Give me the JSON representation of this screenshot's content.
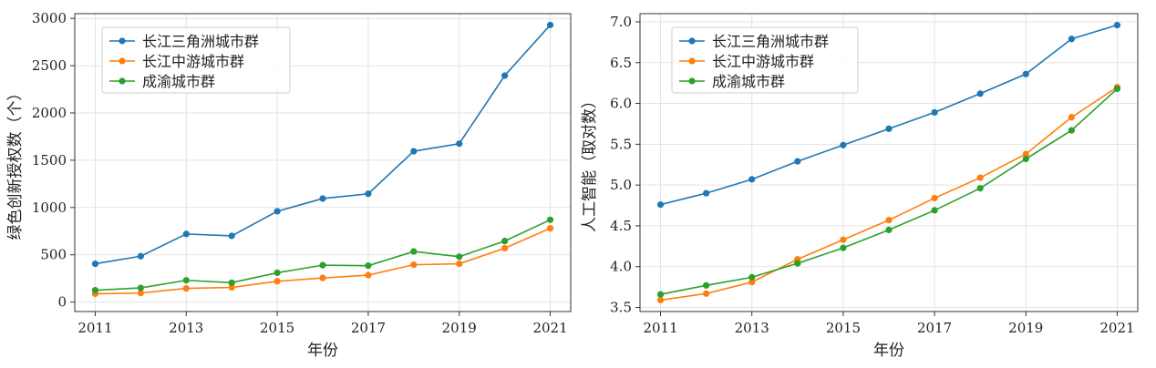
{
  "chart_data": [
    {
      "type": "line",
      "xlabel": "年份",
      "ylabel": "绿色创新授权数（个）",
      "x": [
        2011,
        2012,
        2013,
        2014,
        2015,
        2016,
        2017,
        2018,
        2019,
        2020,
        2021
      ],
      "xticks": [
        2011,
        2013,
        2015,
        2017,
        2019,
        2021
      ],
      "ylim": [
        -100,
        3050
      ],
      "yticks": [
        0,
        500,
        1000,
        1500,
        2000,
        2500,
        3000
      ],
      "grid": true,
      "legend_position": "top-left",
      "series": [
        {
          "name": "长江三角洲城市群",
          "color": "#1f77b4",
          "values": [
            405,
            485,
            720,
            700,
            960,
            1095,
            1145,
            1595,
            1675,
            2395,
            2930
          ]
        },
        {
          "name": "长江中游城市群",
          "color": "#ff7f0e",
          "values": [
            88,
            95,
            145,
            155,
            220,
            255,
            285,
            395,
            405,
            570,
            780
          ]
        },
        {
          "name": "成渝城市群",
          "color": "#2ca02c",
          "values": [
            125,
            150,
            230,
            205,
            310,
            390,
            385,
            535,
            480,
            645,
            870
          ]
        }
      ]
    },
    {
      "type": "line",
      "xlabel": "年份",
      "ylabel": "人工智能（取对数）",
      "x": [
        2011,
        2012,
        2013,
        2014,
        2015,
        2016,
        2017,
        2018,
        2019,
        2020,
        2021
      ],
      "xticks": [
        2011,
        2013,
        2015,
        2017,
        2019,
        2021
      ],
      "ylim": [
        3.45,
        7.1
      ],
      "yticks": [
        3.5,
        4.0,
        4.5,
        5.0,
        5.5,
        6.0,
        6.5,
        7.0
      ],
      "grid": true,
      "legend_position": "top-left",
      "series": [
        {
          "name": "长江三角洲城市群",
          "color": "#1f77b4",
          "values": [
            4.76,
            4.9,
            5.07,
            5.29,
            5.49,
            5.69,
            5.89,
            6.12,
            6.36,
            6.79,
            6.96
          ]
        },
        {
          "name": "长江中游城市群",
          "color": "#ff7f0e",
          "values": [
            3.59,
            3.67,
            3.81,
            4.09,
            4.33,
            4.57,
            4.84,
            5.09,
            5.38,
            5.83,
            6.2
          ]
        },
        {
          "name": "成渝城市群",
          "color": "#2ca02c",
          "values": [
            3.66,
            3.77,
            3.87,
            4.04,
            4.23,
            4.45,
            4.69,
            4.96,
            5.32,
            5.67,
            6.18
          ]
        }
      ]
    }
  ]
}
